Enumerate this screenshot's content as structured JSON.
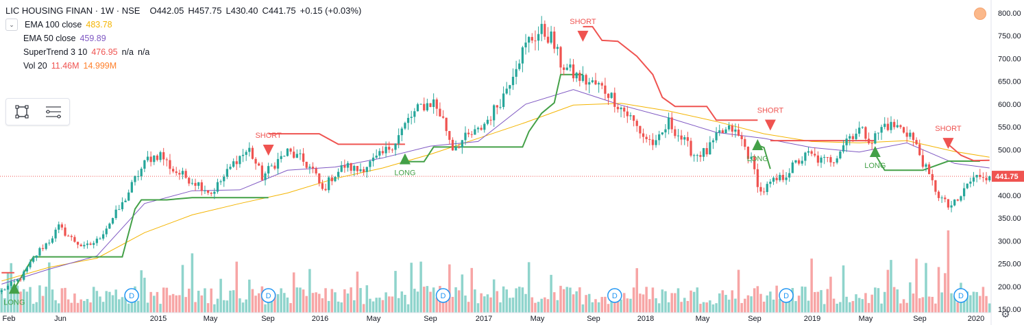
{
  "header": {
    "symbol": "LIC HOUSING FINAN · 1W · NSE",
    "open": "O442.05",
    "high": "H457.75",
    "low": "L430.40",
    "close": "C441.75",
    "change": "+0.15 (+0.03%)"
  },
  "indicators": [
    {
      "name": "EMA 100 close",
      "values": [
        "483.78"
      ],
      "colors": [
        "#f4b400"
      ]
    },
    {
      "name": "EMA 50 close",
      "values": [
        "459.89"
      ],
      "colors": [
        "#7e57c2"
      ]
    },
    {
      "name": "SuperTrend 3 10",
      "values": [
        "476.95",
        "n/a",
        "n/a"
      ],
      "colors": [
        "#ef5350",
        "#131722",
        "#131722"
      ]
    },
    {
      "name": "Vol 20",
      "values": [
        "11.46M",
        "14.999M"
      ],
      "colors": [
        "#ef5350",
        "#ff7f2a"
      ]
    }
  ],
  "icons": {
    "collapse": "chevron-down-icon",
    "rectangle_tool": "rectangle-icon",
    "lines_tool": "lines-icon",
    "settings": "gear-icon",
    "alert_dot": "circle-icon"
  },
  "colors": {
    "up": "#26a69a",
    "down": "#ef5350",
    "vol_up": "#8fd4cc",
    "vol_down": "#f7a5a5",
    "ema100": "#f4b400",
    "ema50": "#7e57c2",
    "st_up": "#43a047",
    "st_down": "#ef5350",
    "last_price": "#ef5350"
  },
  "chart_data": {
    "type": "candlestick",
    "price_axis": {
      "ticks": [
        150,
        200,
        250,
        300,
        350,
        400,
        450,
        500,
        550,
        600,
        650,
        700,
        750,
        800
      ],
      "tick_labels": [
        "150.00",
        "200.00",
        "250.00",
        "300.00",
        "350.00",
        "400.00",
        "",
        "500.00",
        "550.00",
        "600.00",
        "650.00",
        "700.00",
        "750.00",
        "800.00"
      ],
      "range": [
        140,
        815
      ]
    },
    "time_axis": {
      "labels": [
        "Feb",
        "Jun",
        "2015",
        "May",
        "Sep",
        "2016",
        "May",
        "Sep",
        "2017",
        "May",
        "Sep",
        "2018",
        "May",
        "Sep",
        "2019",
        "May",
        "Sep",
        "2020"
      ]
    },
    "last_price": {
      "value": 441.75,
      "label": "441.75"
    },
    "price_path": [
      [
        0,
        190
      ],
      [
        3,
        205
      ],
      [
        6,
        218
      ],
      [
        9,
        250
      ],
      [
        12,
        280
      ],
      [
        15,
        300
      ],
      [
        18,
        330
      ],
      [
        22,
        305
      ],
      [
        26,
        285
      ],
      [
        30,
        300
      ],
      [
        34,
        340
      ],
      [
        38,
        380
      ],
      [
        42,
        435
      ],
      [
        46,
        480
      ],
      [
        50,
        490
      ],
      [
        54,
        455
      ],
      [
        58,
        440
      ],
      [
        62,
        425
      ],
      [
        66,
        405
      ],
      [
        70,
        440
      ],
      [
        74,
        480
      ],
      [
        78,
        500
      ],
      [
        82,
        440
      ],
      [
        86,
        470
      ],
      [
        90,
        495
      ],
      [
        94,
        480
      ],
      [
        98,
        455
      ],
      [
        101,
        410
      ],
      [
        104,
        440
      ],
      [
        108,
        465
      ],
      [
        112,
        455
      ],
      [
        116,
        470
      ],
      [
        120,
        490
      ],
      [
        124,
        520
      ],
      [
        128,
        565
      ],
      [
        132,
        595
      ],
      [
        136,
        605
      ],
      [
        139,
        565
      ],
      [
        142,
        505
      ],
      [
        146,
        525
      ],
      [
        150,
        540
      ],
      [
        154,
        575
      ],
      [
        158,
        620
      ],
      [
        162,
        690
      ],
      [
        166,
        740
      ],
      [
        170,
        760
      ],
      [
        173,
        745
      ],
      [
        176,
        690
      ],
      [
        180,
        665
      ],
      [
        184,
        650
      ],
      [
        188,
        640
      ],
      [
        191,
        625
      ],
      [
        194,
        600
      ],
      [
        198,
        570
      ],
      [
        202,
        530
      ],
      [
        206,
        510
      ],
      [
        210,
        560
      ],
      [
        214,
        525
      ],
      [
        218,
        490
      ],
      [
        222,
        495
      ],
      [
        226,
        535
      ],
      [
        230,
        545
      ],
      [
        233,
        520
      ],
      [
        236,
        475
      ],
      [
        239,
        405
      ],
      [
        242,
        425
      ],
      [
        246,
        440
      ],
      [
        250,
        470
      ],
      [
        254,
        490
      ],
      [
        258,
        475
      ],
      [
        262,
        480
      ],
      [
        266,
        525
      ],
      [
        270,
        545
      ],
      [
        274,
        520
      ],
      [
        278,
        555
      ],
      [
        282,
        550
      ],
      [
        286,
        535
      ],
      [
        289,
        490
      ],
      [
        292,
        440
      ],
      [
        295,
        400
      ],
      [
        298,
        375
      ],
      [
        301,
        385
      ],
      [
        304,
        425
      ],
      [
        308,
        445
      ],
      [
        311,
        441.75
      ]
    ],
    "ema100": [
      [
        0,
        212
      ],
      [
        15,
        242
      ],
      [
        30,
        262
      ],
      [
        45,
        318
      ],
      [
        60,
        357
      ],
      [
        75,
        382
      ],
      [
        90,
        405
      ],
      [
        105,
        437
      ],
      [
        120,
        460
      ],
      [
        135,
        490
      ],
      [
        150,
        525
      ],
      [
        165,
        560
      ],
      [
        180,
        598
      ],
      [
        195,
        602
      ],
      [
        210,
        585
      ],
      [
        225,
        562
      ],
      [
        240,
        535
      ],
      [
        255,
        518
      ],
      [
        270,
        515
      ],
      [
        285,
        520
      ],
      [
        300,
        496
      ],
      [
        311,
        483.78
      ]
    ],
    "ema50": [
      [
        0,
        205
      ],
      [
        15,
        238
      ],
      [
        30,
        267
      ],
      [
        45,
        382
      ],
      [
        60,
        410
      ],
      [
        75,
        412
      ],
      [
        90,
        455
      ],
      [
        105,
        462
      ],
      [
        120,
        482
      ],
      [
        135,
        508
      ],
      [
        150,
        518
      ],
      [
        165,
        600
      ],
      [
        180,
        632
      ],
      [
        195,
        598
      ],
      [
        210,
        570
      ],
      [
        225,
        538
      ],
      [
        240,
        525
      ],
      [
        255,
        505
      ],
      [
        270,
        495
      ],
      [
        285,
        515
      ],
      [
        300,
        470
      ],
      [
        311,
        459.89
      ]
    ],
    "supertrend_up": [
      [
        4,
        195
      ],
      [
        10,
        265
      ],
      [
        20,
        265
      ],
      [
        30,
        265
      ],
      [
        38,
        265
      ],
      [
        42,
        370
      ],
      [
        44,
        390
      ],
      [
        52,
        390
      ],
      [
        60,
        395
      ],
      [
        70,
        395
      ],
      [
        80,
        395
      ],
      [
        84,
        395
      ]
    ],
    "supertrend_down1": [
      [
        0,
        230
      ],
      [
        4,
        230
      ]
    ],
    "supertrend_down2": [
      [
        84,
        535
      ],
      [
        100,
        535
      ],
      [
        106,
        512
      ],
      [
        115,
        512
      ],
      [
        127,
        512
      ]
    ],
    "supertrend_up2": [
      [
        127,
        474
      ],
      [
        133,
        474
      ],
      [
        136,
        506
      ],
      [
        150,
        506
      ],
      [
        164,
        506
      ],
      [
        166,
        540
      ],
      [
        170,
        580
      ],
      [
        174,
        603
      ],
      [
        176,
        665
      ],
      [
        183,
        665
      ]
    ],
    "supertrend_down3": [
      [
        183,
        770
      ],
      [
        186,
        770
      ],
      [
        189,
        740
      ],
      [
        194,
        738
      ],
      [
        200,
        705
      ],
      [
        205,
        665
      ],
      [
        208,
        615
      ],
      [
        212,
        595
      ],
      [
        222,
        595
      ],
      [
        225,
        565
      ],
      [
        230,
        565
      ],
      [
        238,
        565
      ]
    ],
    "supertrend_up3": [
      [
        238,
        510
      ],
      [
        240,
        505
      ],
      [
        242,
        458
      ]
    ],
    "supertrend_down4": [
      [
        242,
        520
      ],
      [
        258,
        520
      ],
      [
        275,
        520
      ]
    ],
    "supertrend_up4": [
      [
        275,
        490
      ],
      [
        278,
        455
      ],
      [
        290,
        455
      ],
      [
        298,
        475
      ],
      [
        308,
        475
      ]
    ],
    "supertrend_down5": [
      [
        298,
        512
      ],
      [
        302,
        488
      ],
      [
        306,
        476
      ],
      [
        311,
        476.95
      ]
    ],
    "signals": [
      {
        "type": "LONG",
        "x": 4,
        "price": 190
      },
      {
        "type": "SHORT",
        "x": 84,
        "price": 505
      },
      {
        "type": "LONG",
        "x": 127,
        "price": 474
      },
      {
        "type": "SHORT",
        "x": 183,
        "price": 755
      },
      {
        "type": "LONG",
        "x": 238,
        "price": 505
      },
      {
        "type": "SHORT",
        "x": 242,
        "price": 560
      },
      {
        "type": "LONG",
        "x": 275,
        "price": 490
      },
      {
        "type": "SHORT",
        "x": 298,
        "price": 520
      }
    ],
    "dividend_markers": {
      "label": "D",
      "x": [
        28,
        84,
        139,
        193,
        247,
        302
      ]
    }
  }
}
